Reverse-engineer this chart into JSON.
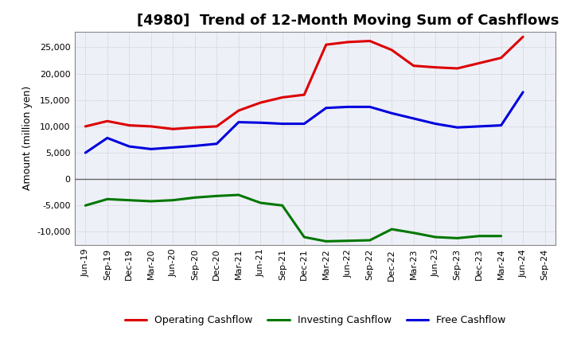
{
  "title": "[4980]  Trend of 12-Month Moving Sum of Cashflows",
  "ylabel": "Amount (million yen)",
  "x_labels": [
    "Jun-19",
    "Sep-19",
    "Dec-19",
    "Mar-20",
    "Jun-20",
    "Sep-20",
    "Dec-20",
    "Mar-21",
    "Jun-21",
    "Sep-21",
    "Dec-21",
    "Mar-22",
    "Jun-22",
    "Sep-22",
    "Dec-22",
    "Mar-23",
    "Jun-23",
    "Sep-23",
    "Dec-23",
    "Mar-24",
    "Jun-24",
    "Sep-24"
  ],
  "operating": [
    10000,
    11000,
    10200,
    10000,
    9500,
    9800,
    10000,
    13000,
    14500,
    15500,
    16000,
    25500,
    26000,
    26200,
    24500,
    21500,
    21200,
    21000,
    22000,
    23000,
    27000,
    null
  ],
  "investing": [
    -5000,
    -3800,
    -4000,
    -4200,
    -4000,
    -3500,
    -3200,
    -3000,
    -4500,
    -5000,
    -11000,
    -11800,
    -11700,
    -11600,
    -9500,
    -10200,
    -11000,
    -11200,
    -10800,
    -10800,
    null,
    null
  ],
  "free": [
    5000,
    7800,
    6200,
    5700,
    6000,
    6300,
    6700,
    10800,
    10700,
    10500,
    10500,
    13500,
    13700,
    13700,
    12500,
    11500,
    10500,
    9800,
    10000,
    10200,
    16500,
    null
  ],
  "ylim": [
    -12500,
    28000
  ],
  "yticks": [
    -10000,
    -5000,
    0,
    5000,
    10000,
    15000,
    20000,
    25000
  ],
  "operating_color": "#dd0000",
  "investing_color": "#007700",
  "free_color": "#0000dd",
  "plot_bg_color": "#eef0f8",
  "fig_bg_color": "#ffffff",
  "grid_color": "#bbbbbb",
  "zero_line_color": "#666666",
  "linewidth": 2.2,
  "title_fontsize": 13,
  "axis_label_fontsize": 9,
  "tick_fontsize": 8,
  "legend_fontsize": 9
}
